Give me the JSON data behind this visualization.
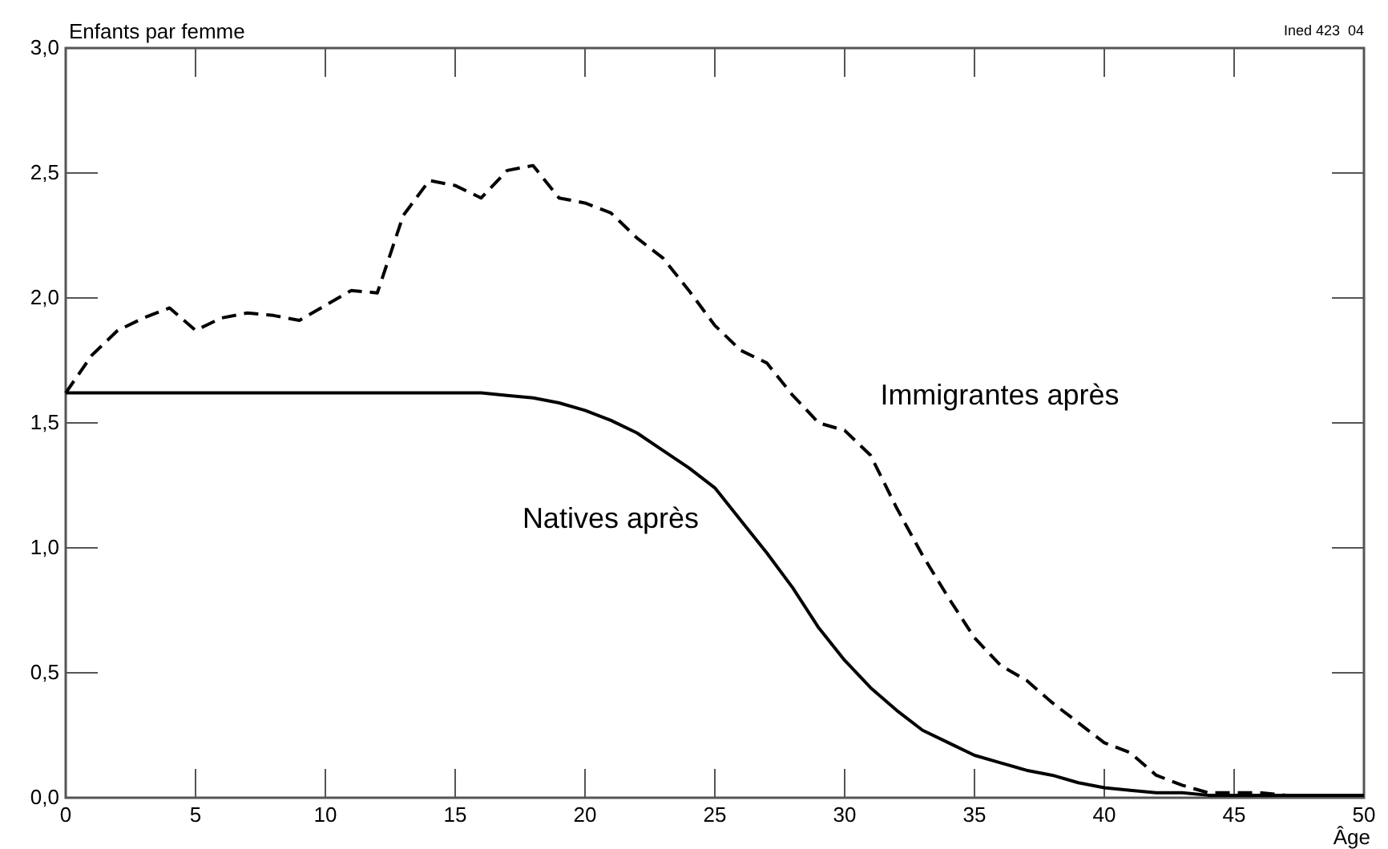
{
  "chart_data": {
    "type": "line",
    "ylabel": "Enfants par femme",
    "xlabel": "Âge",
    "annotations": [
      "Ined 423  04"
    ],
    "x": [
      0,
      1,
      2,
      3,
      4,
      5,
      6,
      7,
      8,
      9,
      10,
      11,
      12,
      13,
      14,
      15,
      16,
      17,
      18,
      19,
      20,
      21,
      22,
      23,
      24,
      25,
      26,
      27,
      28,
      29,
      30,
      31,
      32,
      33,
      34,
      35,
      36,
      37,
      38,
      39,
      40,
      41,
      42,
      43,
      44,
      45,
      46,
      47,
      48,
      49,
      50
    ],
    "series": [
      {
        "name": "Natives après",
        "color": "#000000",
        "line_style": "solid",
        "values": [
          1.62,
          1.62,
          1.62,
          1.62,
          1.62,
          1.62,
          1.62,
          1.62,
          1.62,
          1.62,
          1.62,
          1.62,
          1.62,
          1.62,
          1.62,
          1.62,
          1.62,
          1.61,
          1.6,
          1.58,
          1.55,
          1.51,
          1.46,
          1.39,
          1.32,
          1.24,
          1.11,
          0.98,
          0.84,
          0.68,
          0.55,
          0.44,
          0.35,
          0.27,
          0.22,
          0.17,
          0.14,
          0.11,
          0.09,
          0.06,
          0.04,
          0.03,
          0.02,
          0.02,
          0.01,
          0.01,
          0.01,
          0.01,
          0.01,
          0.01,
          0.01
        ]
      },
      {
        "name": "Immigrantes après",
        "color": "#000000",
        "line_style": "dashed",
        "values": [
          1.62,
          1.77,
          1.87,
          1.92,
          1.96,
          1.87,
          1.92,
          1.94,
          1.93,
          1.91,
          1.97,
          2.03,
          2.02,
          2.33,
          2.47,
          2.45,
          2.4,
          2.51,
          2.53,
          2.4,
          2.38,
          2.34,
          2.24,
          2.16,
          2.03,
          1.89,
          1.79,
          1.74,
          1.61,
          1.5,
          1.47,
          1.37,
          1.16,
          0.97,
          0.8,
          0.64,
          0.53,
          0.47,
          0.38,
          0.3,
          0.22,
          0.18,
          0.09,
          0.05,
          0.02,
          0.02,
          0.02,
          0.01,
          0.01,
          0.01,
          0.01
        ]
      }
    ],
    "xlim": [
      0,
      50
    ],
    "xticks": [
      0,
      5,
      10,
      15,
      20,
      25,
      30,
      35,
      40,
      45,
      50
    ],
    "ylim": [
      0,
      3
    ],
    "yticks": [
      {
        "value": 0,
        "label": "0,0"
      },
      {
        "value": 0.5,
        "label": "0,5"
      },
      {
        "value": 1,
        "label": "1,0"
      },
      {
        "value": 1.5,
        "label": "1,5"
      },
      {
        "value": 2,
        "label": "2,0"
      },
      {
        "value": 2.5,
        "label": "2,5"
      },
      {
        "value": 3,
        "label": "3,0"
      }
    ],
    "grid": false,
    "marker": "none"
  }
}
